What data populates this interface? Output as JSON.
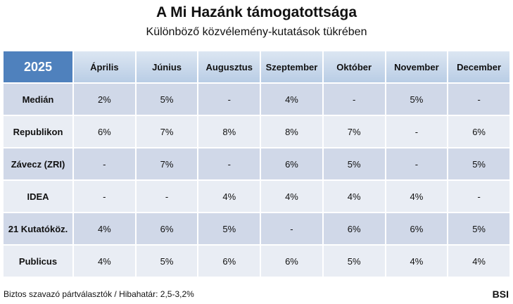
{
  "header": {
    "title": "A Mi Hazánk támogatottsága",
    "subtitle": "Különböző közvélemény-kutatások tükrében"
  },
  "table": {
    "columns": [
      "2025",
      "Április",
      "Június",
      "Augusztus",
      "Szeptember",
      "Október",
      "November",
      "December"
    ],
    "rows": [
      [
        "Medián",
        "2%",
        "5%",
        "-",
        "4%",
        "-",
        "5%",
        "-"
      ],
      [
        "Republikon",
        "6%",
        "7%",
        "8%",
        "8%",
        "7%",
        "-",
        "6%"
      ],
      [
        "Závecz (ZRI)",
        "-",
        "7%",
        "-",
        "6%",
        "5%",
        "-",
        "5%"
      ],
      [
        "IDEA",
        "-",
        "-",
        "4%",
        "4%",
        "4%",
        "4%",
        "-"
      ],
      [
        "21 Kutatóköz.",
        "4%",
        "6%",
        "5%",
        "-",
        "6%",
        "6%",
        "5%"
      ],
      [
        "Publicus",
        "4%",
        "5%",
        "6%",
        "6%",
        "5%",
        "4%",
        "4%"
      ]
    ]
  },
  "footer": {
    "note": "Biztos szavazó pártválasztók / Hibahatár: 2,5-3,2%",
    "brand": "BSI"
  }
}
